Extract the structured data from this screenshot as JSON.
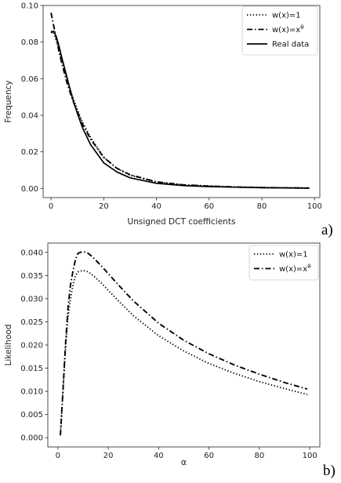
{
  "chart_data": [
    {
      "type": "line",
      "panel_label": "a)",
      "xlabel": "Unsigned DCT coefficients",
      "ylabel": "Frequency",
      "xlim": [
        -3,
        102
      ],
      "ylim": [
        -0.005,
        0.1
      ],
      "xticks": [
        "0",
        "20",
        "40",
        "60",
        "80",
        "100"
      ],
      "xtick_values": [
        0,
        20,
        40,
        60,
        80,
        100
      ],
      "yticks": [
        "0.00",
        "0.02",
        "0.04",
        "0.06",
        "0.08",
        "0.10"
      ],
      "ytick_values": [
        0,
        0.02,
        0.04,
        0.06,
        0.08,
        0.1
      ],
      "grid": false,
      "legend_position": "top-right",
      "series": [
        {
          "name": "w(x)=1",
          "name_sup": "",
          "style": "dotted",
          "x": [
            0,
            1,
            2,
            3,
            4,
            6,
            8,
            10,
            12,
            15,
            20,
            25,
            30,
            40,
            50,
            60,
            70,
            80,
            90,
            98
          ],
          "y": [
            0.086,
            0.085,
            0.081,
            0.076,
            0.07,
            0.06,
            0.051,
            0.043,
            0.036,
            0.028,
            0.017,
            0.011,
            0.0072,
            0.0035,
            0.002,
            0.0013,
            0.0008,
            0.0005,
            0.0003,
            0.0002
          ]
        },
        {
          "name": "w(x)=x",
          "name_sup": "θ",
          "style": "dashdot",
          "x": [
            0,
            1,
            2,
            3,
            4,
            6,
            8,
            10,
            12,
            15,
            20,
            25,
            30,
            40,
            50,
            60,
            70,
            80,
            90,
            98
          ],
          "y": [
            0.096,
            0.089,
            0.082,
            0.075,
            0.069,
            0.058,
            0.049,
            0.042,
            0.035,
            0.027,
            0.017,
            0.011,
            0.0075,
            0.0036,
            0.002,
            0.0013,
            0.0008,
            0.0005,
            0.0003,
            0.0002
          ]
        },
        {
          "name": "Real data",
          "name_sup": "",
          "style": "solid",
          "x": [
            0,
            1,
            2,
            3,
            4,
            6,
            8,
            10,
            12,
            15,
            20,
            25,
            30,
            40,
            50,
            60,
            70,
            80,
            90,
            98
          ],
          "y": [
            0.085,
            0.086,
            0.083,
            0.078,
            0.072,
            0.061,
            0.05,
            0.041,
            0.033,
            0.024,
            0.014,
            0.009,
            0.0058,
            0.0028,
            0.0016,
            0.001,
            0.0007,
            0.0004,
            0.0003,
            0.0002
          ]
        }
      ]
    },
    {
      "type": "line",
      "panel_label": "b)",
      "xlabel": "α",
      "ylabel": "Likelihood",
      "xlim": [
        -4,
        104
      ],
      "ylim": [
        -0.002,
        0.042
      ],
      "xticks": [
        "0",
        "20",
        "40",
        "60",
        "80",
        "100"
      ],
      "xtick_values": [
        0,
        20,
        40,
        60,
        80,
        100
      ],
      "yticks": [
        "0.000",
        "0.005",
        "0.010",
        "0.015",
        "0.020",
        "0.025",
        "0.030",
        "0.035",
        "0.040"
      ],
      "ytick_values": [
        0,
        0.005,
        0.01,
        0.015,
        0.02,
        0.025,
        0.03,
        0.035,
        0.04
      ],
      "grid": false,
      "legend_position": "top-right",
      "series": [
        {
          "name": "w(x)=1",
          "name_sup": "",
          "style": "dotted",
          "x": [
            1,
            2,
            3,
            4,
            5,
            6,
            7,
            8,
            10,
            12,
            14,
            17,
            20,
            25,
            30,
            40,
            50,
            60,
            70,
            80,
            90,
            99
          ],
          "y": [
            0.0005,
            0.01,
            0.019,
            0.026,
            0.03,
            0.033,
            0.035,
            0.0358,
            0.0361,
            0.0358,
            0.035,
            0.0335,
            0.0318,
            0.029,
            0.0263,
            0.022,
            0.0187,
            0.016,
            0.0139,
            0.0121,
            0.0106,
            0.0093
          ]
        },
        {
          "name": "w(x)=x",
          "name_sup": "θ",
          "style": "dashdot",
          "x": [
            1,
            2,
            3,
            4,
            5,
            6,
            7,
            8,
            10,
            12,
            14,
            17,
            20,
            25,
            30,
            40,
            50,
            60,
            70,
            80,
            90,
            99
          ],
          "y": [
            0.0005,
            0.01,
            0.02,
            0.028,
            0.033,
            0.036,
            0.0385,
            0.0398,
            0.0402,
            0.0398,
            0.0389,
            0.0372,
            0.0354,
            0.0324,
            0.0295,
            0.0247,
            0.021,
            0.0181,
            0.0157,
            0.0137,
            0.0119,
            0.0105
          ]
        }
      ]
    }
  ],
  "colors": {
    "line": "#000000",
    "axis": "#222222"
  }
}
